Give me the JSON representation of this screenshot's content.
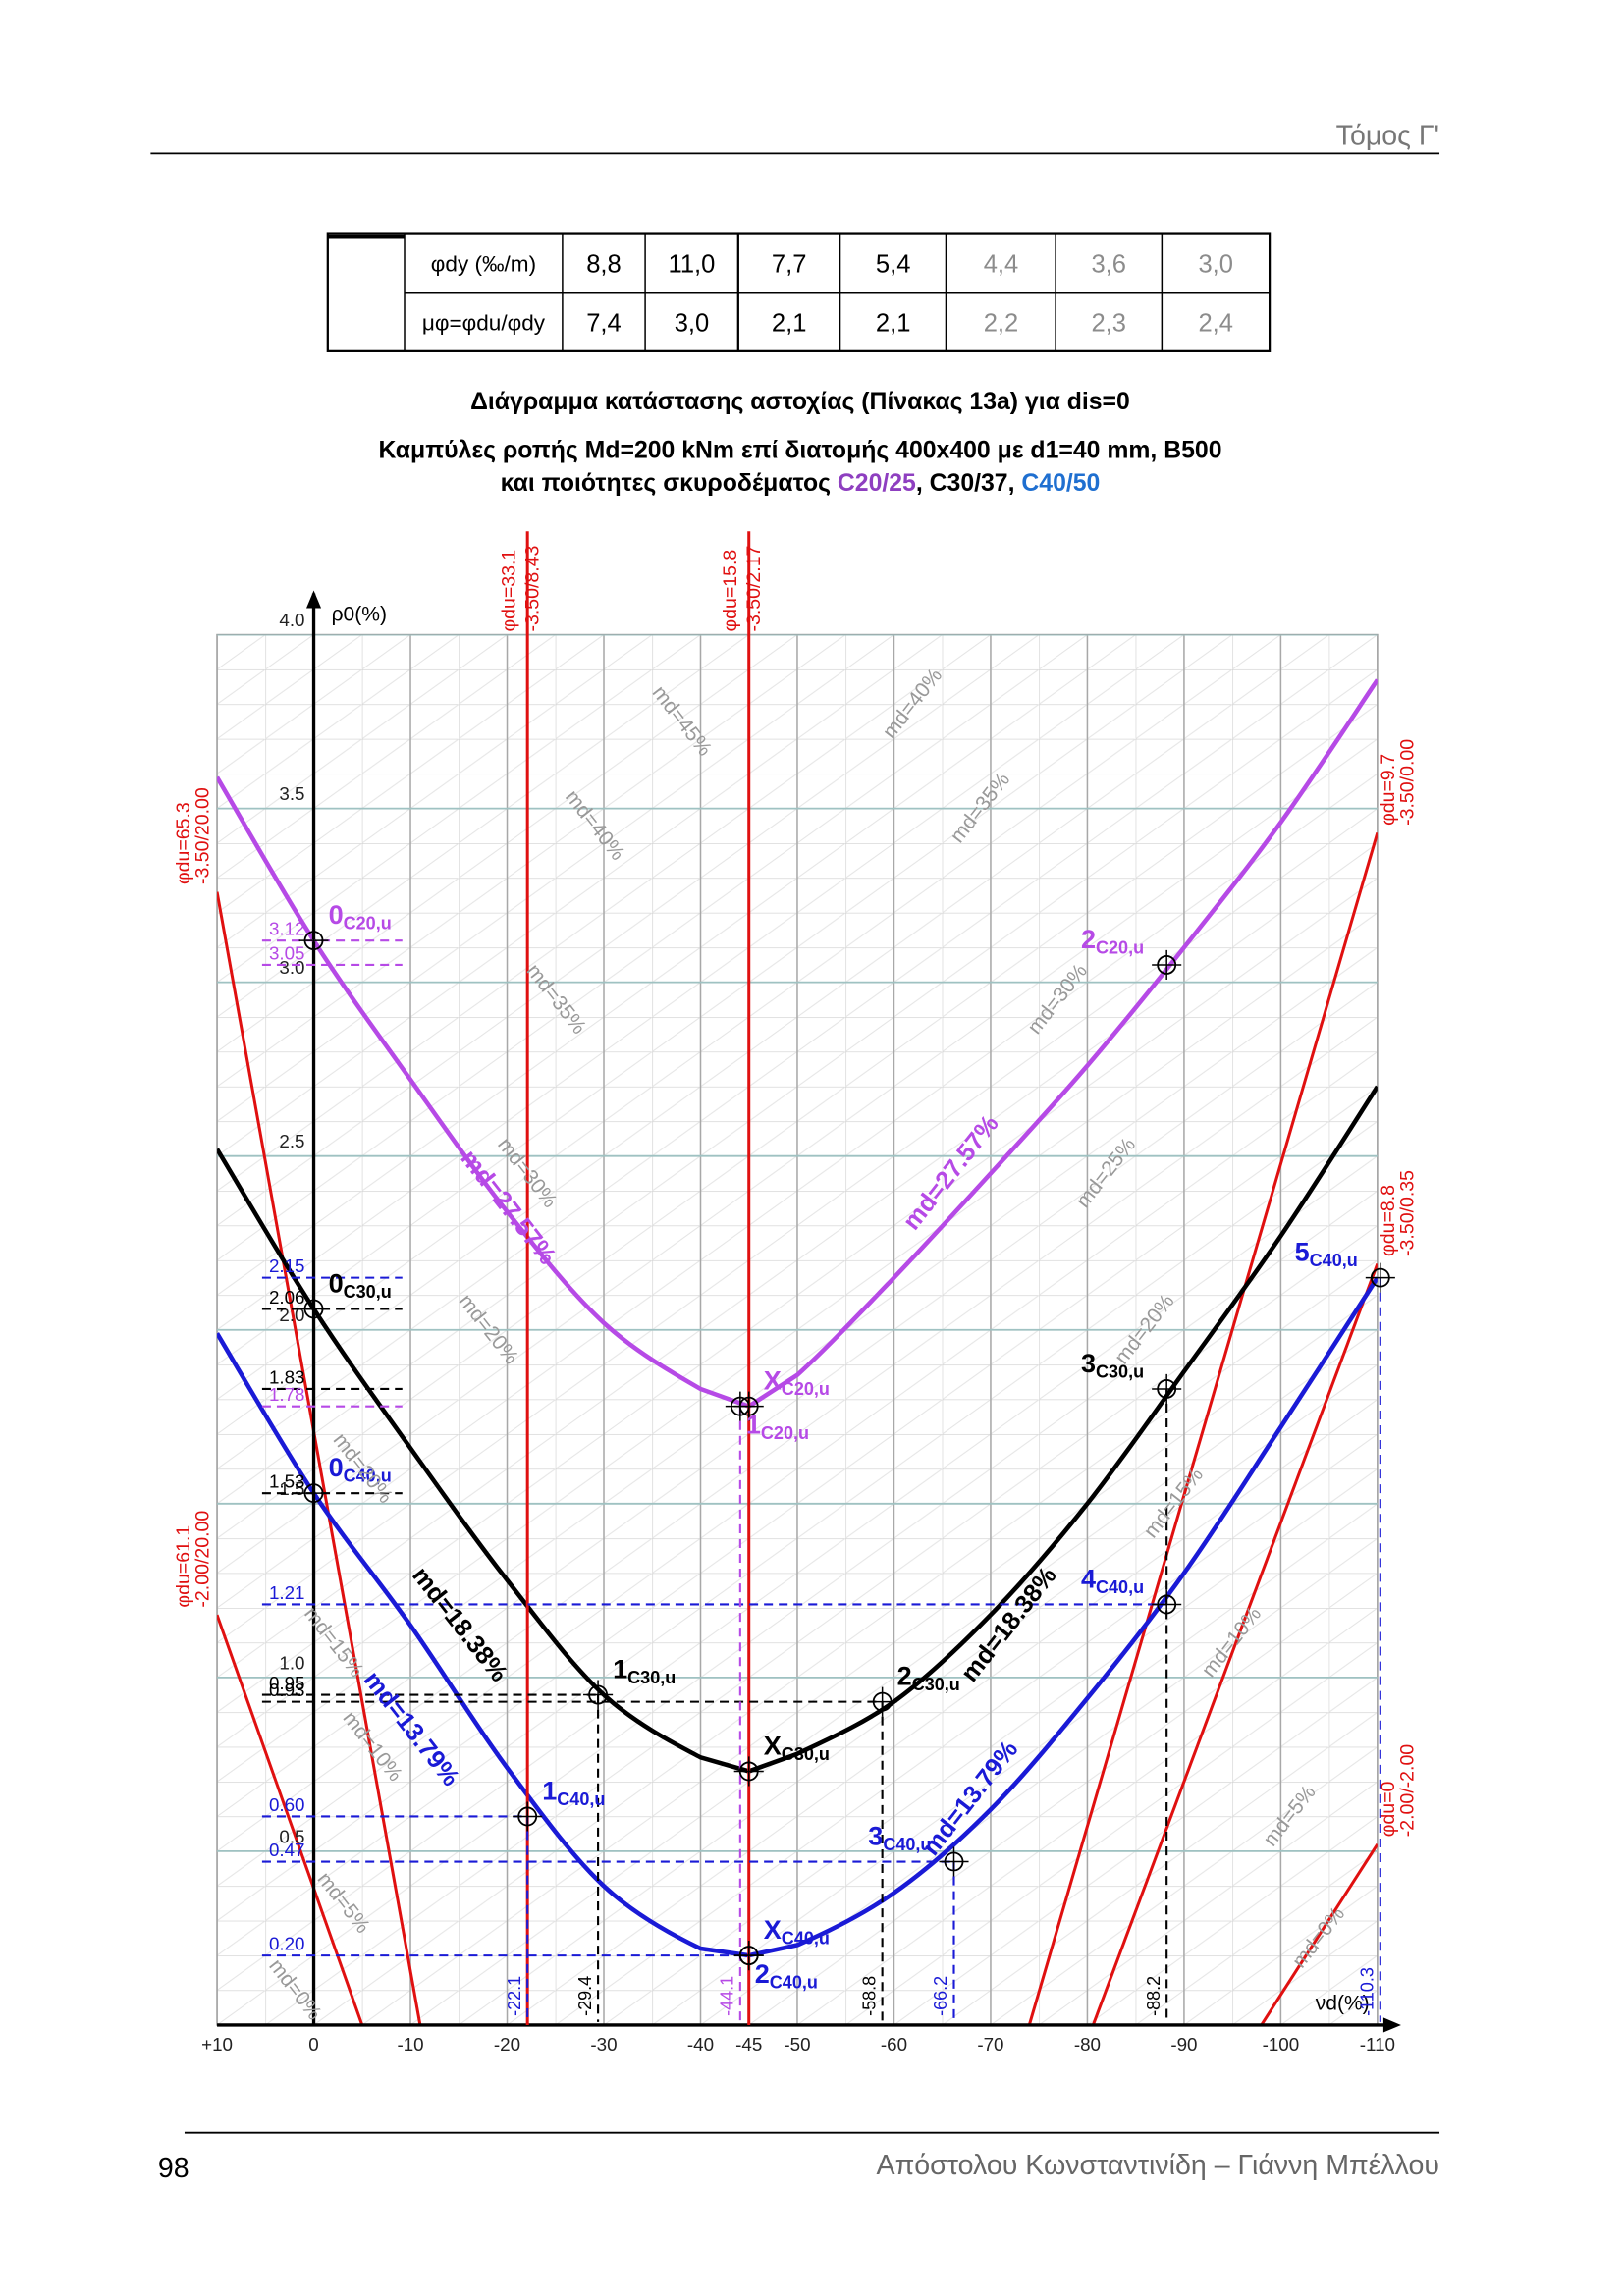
{
  "header": {
    "volume": "Τόμος Γ'"
  },
  "table": {
    "rows": [
      [
        "φdy (‰/m)",
        "8,8",
        "11,0",
        "7,7",
        "5,4",
        "4,4",
        "3,6",
        "3,0"
      ],
      [
        "μφ=φdu/φdy",
        "7,4",
        "3,0",
        "2,1",
        "2,1",
        "2,2",
        "2,3",
        "2,4"
      ]
    ],
    "muted_color": "#8c8c8c"
  },
  "title": {
    "line1": "Διάγραμμα κατάστασης αστοχίας (Πίνακας 13a) για dis=0",
    "line2": "Καμπύλες ροπής Md=200 kNm επί διατομής 400x400 με d1=40 mm, B500",
    "line3": [
      {
        "text": "και ποιότητες σκυροδέματος ",
        "color": "#000000"
      },
      {
        "text": "C20/25",
        "color": "#8e3fc0"
      },
      {
        "text": ", C30/37, ",
        "color": "#000000"
      },
      {
        "text": "C40/50",
        "color": "#1f6fd0"
      }
    ]
  },
  "chart_data": {
    "type": "line",
    "y_label": "ρ0(%)",
    "x_label": "νd(%)",
    "xlim": [
      10,
      -110
    ],
    "ylim": [
      0,
      4
    ],
    "xticks": [
      {
        "value": 10,
        "label": "+10"
      },
      0,
      -10,
      -20,
      -30,
      -40,
      -45,
      -50,
      -60,
      -70,
      -80,
      -90,
      -100,
      -110
    ],
    "yticks": [
      {
        "value": 4,
        "label": "4.0"
      },
      3.5,
      {
        "value": 3,
        "label": "3.0"
      },
      2.5,
      {
        "value": 2,
        "label": "2.0"
      },
      1.5,
      {
        "value": 1,
        "label": "1.0"
      },
      0.5
    ],
    "grid": true,
    "series": [
      {
        "color": "#b64ae6",
        "x": [
          10,
          0,
          -10,
          -20,
          -30,
          -40,
          -45,
          -50,
          -60,
          -70,
          -80,
          -90,
          -100,
          -110
        ],
        "y": [
          3.59,
          3.12,
          2.72,
          2.34,
          2.02,
          1.83,
          1.78,
          1.87,
          2.15,
          2.45,
          2.76,
          3.1,
          3.46,
          3.87
        ]
      },
      {
        "color": "#000000",
        "x": [
          10,
          0,
          -10,
          -20,
          -30,
          -40,
          -45,
          -50,
          -60,
          -70,
          -80,
          -90,
          -100,
          -110
        ],
        "y": [
          2.52,
          2.06,
          1.66,
          1.28,
          0.95,
          0.77,
          0.73,
          0.78,
          0.93,
          1.18,
          1.5,
          1.88,
          2.27,
          2.7
        ]
      },
      {
        "color": "#1a1ad6",
        "x": [
          10,
          0,
          -10,
          -20,
          -30,
          -40,
          -45,
          -50,
          -60,
          -70,
          -80,
          -90,
          -100,
          -110
        ],
        "y": [
          1.99,
          1.53,
          1.15,
          0.74,
          0.4,
          0.22,
          0.2,
          0.23,
          0.38,
          0.62,
          0.94,
          1.3,
          1.72,
          2.15
        ]
      }
    ],
    "vlines": [
      {
        "x": -22.1,
        "color": "#e01010",
        "label1": "φdu=33.1",
        "label2": "-3.50/8.43"
      },
      {
        "x": -45,
        "color": "#e01010",
        "label1": "φdu=15.8",
        "label2": "-3.50/2.17"
      }
    ],
    "diagonals": [
      {
        "x": [
          10,
          -11
        ],
        "y": [
          3.26,
          0
        ],
        "color": "#e01010",
        "label1": "φdu=65.3",
        "label2": "-3.50/20.00"
      },
      {
        "x": [
          10,
          -5
        ],
        "y": [
          1.18,
          0
        ],
        "color": "#e01010",
        "label1": "φdu=61.1",
        "label2": "-2.00/20.00"
      },
      {
        "x": [
          -110,
          -74
        ],
        "y": [
          3.43,
          0
        ],
        "color": "#e01010",
        "label1": "φdu=9.7",
        "label2": "-3.50/0.00"
      },
      {
        "x": [
          -110,
          -80.6
        ],
        "y": [
          2.19,
          0
        ],
        "color": "#e01010",
        "label1": "φdu=8.8",
        "label2": "-3.50/0.35"
      },
      {
        "x": [
          -110,
          -98
        ],
        "y": [
          0.52,
          0
        ],
        "color": "#e01010",
        "label1": "φdu=0",
        "label2": "-2.00/-2.00"
      }
    ],
    "guides": [
      {
        "axis": "y",
        "x": 0,
        "y": 3.12,
        "label": "3.12",
        "color": "#b64ae6"
      },
      {
        "axis": "y",
        "x": 0,
        "y": 3.05,
        "label": "3.05",
        "color": "#b64ae6"
      },
      {
        "axis": "y",
        "x": 0,
        "y": 2.15,
        "label": "2.15",
        "color": "#1a1ad6"
      },
      {
        "axis": "y",
        "x": 0,
        "y": 2.06,
        "label": "2.06",
        "color": "#000000"
      },
      {
        "axis": "y",
        "x": 0,
        "y": 1.83,
        "label": "1.83",
        "color": "#000000"
      },
      {
        "axis": "y",
        "x": 0,
        "y": 1.78,
        "label": "1.78",
        "color": "#b64ae6"
      },
      {
        "axis": "y",
        "x": 0,
        "y": 1.53,
        "label": "1.53",
        "color": "#000000"
      },
      {
        "axis": "y",
        "x": -88.2,
        "y": 1.21,
        "label": "1.21",
        "color": "#1a1ad6"
      },
      {
        "axis": "y",
        "x": -29.4,
        "y": 0.95,
        "label": "0.95",
        "color": "#000000"
      },
      {
        "axis": "y",
        "x": -58.8,
        "y": 0.93,
        "label": "0.93",
        "color": "#000000"
      },
      {
        "axis": "y",
        "x": -22.1,
        "y": 0.6,
        "label": "0.60",
        "color": "#1a1ad6"
      },
      {
        "axis": "y",
        "x": -66.2,
        "y": 0.47,
        "label": "0.47",
        "color": "#1a1ad6"
      },
      {
        "axis": "y",
        "x": -45,
        "y": 0.2,
        "label": "0.20",
        "color": "#1a1ad6"
      },
      {
        "axis": "x",
        "x": -22.1,
        "y": 0.6,
        "label": "-22.1",
        "color": "#1a1ad6"
      },
      {
        "axis": "x",
        "x": -29.4,
        "y": 0.95,
        "label": "-29.4",
        "color": "#000000"
      },
      {
        "axis": "x",
        "x": -44.1,
        "y": 1.78,
        "label": "-44.1",
        "color": "#b64ae6"
      },
      {
        "axis": "x",
        "x": -58.8,
        "y": 0.93,
        "label": "-58.8",
        "color": "#000000"
      },
      {
        "axis": "x",
        "x": -66.2,
        "y": 0.47,
        "label": "-66.2",
        "color": "#1a1ad6"
      },
      {
        "axis": "x",
        "x": -88.2,
        "y": 1.83,
        "label": "-88.2",
        "color": "#000000"
      },
      {
        "axis": "x",
        "x": -110.3,
        "y": 2.15,
        "label": "-110.3",
        "color": "#1a1ad6"
      }
    ],
    "points": [
      {
        "name": "0",
        "sub": "C20,u",
        "x": 0,
        "y": 3.12,
        "color": "#b64ae6"
      },
      {
        "name": "X",
        "sub": "C20,u",
        "x": -45,
        "y": 1.78,
        "color": "#b64ae6"
      },
      {
        "name": "1",
        "sub": "C20,u",
        "x": -44.1,
        "y": 1.78,
        "color": "#b64ae6"
      },
      {
        "name": "2",
        "sub": "C20,u",
        "x": -88.2,
        "y": 3.05,
        "color": "#b64ae6"
      },
      {
        "name": "0",
        "sub": "C30,u",
        "x": 0,
        "y": 2.06,
        "color": "#000000"
      },
      {
        "name": "1",
        "sub": "C30,u",
        "x": -29.4,
        "y": 0.95,
        "color": "#000000"
      },
      {
        "name": "X",
        "sub": "C30,u",
        "x": -45,
        "y": 0.73,
        "color": "#000000"
      },
      {
        "name": "2",
        "sub": "C30,u",
        "x": -58.8,
        "y": 0.93,
        "color": "#000000"
      },
      {
        "name": "3",
        "sub": "C30,u",
        "x": -88.2,
        "y": 1.83,
        "color": "#000000"
      },
      {
        "name": "0",
        "sub": "C40,u",
        "x": 0,
        "y": 1.53,
        "color": "#1a1ad6"
      },
      {
        "name": "1",
        "sub": "C40,u",
        "x": -22.1,
        "y": 0.6,
        "color": "#1a1ad6"
      },
      {
        "name": "X",
        "sub": "C40,u",
        "x": -45,
        "y": 0.2,
        "color": "#1a1ad6"
      },
      {
        "name": "2",
        "sub": "C40,u",
        "x": -45,
        "y": 0.2,
        "color": "#1a1ad6"
      },
      {
        "name": "3",
        "sub": "C40,u",
        "x": -66.2,
        "y": 0.47,
        "color": "#1a1ad6"
      },
      {
        "name": "4",
        "sub": "C40,u",
        "x": -88.2,
        "y": 1.21,
        "color": "#1a1ad6"
      },
      {
        "name": "5",
        "sub": "C40,u",
        "x": -110.3,
        "y": 2.15,
        "color": "#1a1ad6"
      }
    ],
    "annotations": [
      {
        "text": "md=27.57%",
        "x": -20,
        "y": 2.35,
        "color": "#b64ae6",
        "bold": true
      },
      {
        "text": "md=27.57%",
        "x": -66,
        "y": 2.45,
        "color": "#b64ae6",
        "bold": true
      },
      {
        "text": "md=18.38%",
        "x": -15,
        "y": 1.15,
        "color": "#000000",
        "bold": true
      },
      {
        "text": "md=18.38%",
        "x": -72,
        "y": 1.15,
        "color": "#000000",
        "bold": true
      },
      {
        "text": "md=13.79%",
        "x": -10,
        "y": 0.85,
        "color": "#1a1ad6",
        "bold": true
      },
      {
        "text": "md=13.79%",
        "x": -68,
        "y": 0.65,
        "color": "#1a1ad6",
        "bold": true
      },
      {
        "text": "md=45%",
        "x": -38,
        "y": 3.75,
        "color": "#999999",
        "bold": false
      },
      {
        "text": "md=40%",
        "x": -62,
        "y": 3.8,
        "color": "#999999",
        "bold": false
      },
      {
        "text": "md=40%",
        "x": -29,
        "y": 3.45,
        "color": "#999999",
        "bold": false
      },
      {
        "text": "md=35%",
        "x": -69,
        "y": 3.5,
        "color": "#999999",
        "bold": false
      },
      {
        "text": "md=35%",
        "x": -25,
        "y": 2.95,
        "color": "#999999",
        "bold": false
      },
      {
        "text": "md=30%",
        "x": -77,
        "y": 2.95,
        "color": "#999999",
        "bold": false
      },
      {
        "text": "md=30%",
        "x": -22,
        "y": 2.45,
        "color": "#999999",
        "bold": false
      },
      {
        "text": "md=25%",
        "x": -82,
        "y": 2.45,
        "color": "#999999",
        "bold": false
      },
      {
        "text": "md=20%",
        "x": -18,
        "y": 2.0,
        "color": "#999999",
        "bold": false
      },
      {
        "text": "md=20%",
        "x": -86,
        "y": 2.0,
        "color": "#999999",
        "bold": false
      },
      {
        "text": "md=20%",
        "x": -5,
        "y": 1.6,
        "color": "#999999",
        "bold": false
      },
      {
        "text": "md=15%",
        "x": -89,
        "y": 1.5,
        "color": "#999999",
        "bold": false
      },
      {
        "text": "md=15%",
        "x": -2,
        "y": 1.1,
        "color": "#999999",
        "bold": false
      },
      {
        "text": "md=10%",
        "x": -95,
        "y": 1.1,
        "color": "#999999",
        "bold": false
      },
      {
        "text": "md=10%",
        "x": -6,
        "y": 0.8,
        "color": "#999999",
        "bold": false
      },
      {
        "text": "md=5%",
        "x": -101,
        "y": 0.6,
        "color": "#999999",
        "bold": false
      },
      {
        "text": "md=5%",
        "x": -3,
        "y": 0.35,
        "color": "#999999",
        "bold": false
      },
      {
        "text": "md=0%",
        "x": -104,
        "y": 0.25,
        "color": "#999999",
        "bold": false
      },
      {
        "text": "md=0%",
        "x": 2,
        "y": 0.1,
        "color": "#999999",
        "bold": false
      }
    ]
  },
  "footer": {
    "page": "98",
    "authors": "Απόστολου Κωνσταντινίδη – Γιάννη Μπέλλου"
  }
}
